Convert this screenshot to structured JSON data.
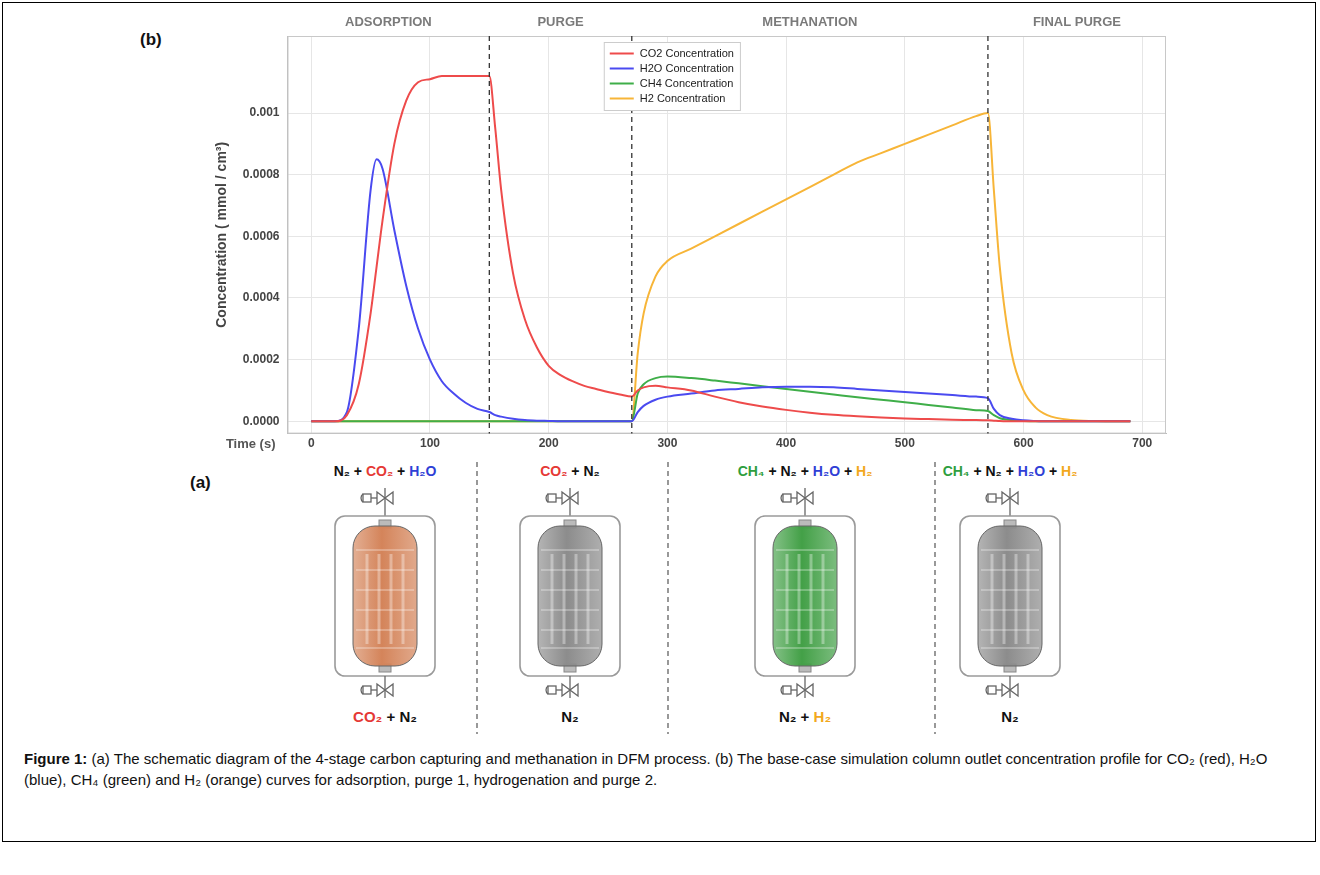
{
  "chart_data": {
    "type": "line",
    "panel_label": "(b)",
    "x_label": "Time (s)",
    "y_label": "Concentration ( mmol / cm³)",
    "phases": [
      "ADSORPTION",
      "PURGE",
      "METHANATION",
      "FINAL PURGE"
    ],
    "phase_boundaries": [
      150,
      270,
      570
    ],
    "xlim": [
      -20,
      720
    ],
    "xticks": [
      0,
      100,
      200,
      300,
      400,
      500,
      600,
      700
    ],
    "ylim": [
      -4e-05,
      0.00125
    ],
    "yticks": [
      {
        "value": 0,
        "label": "0.0000"
      },
      {
        "value": 0.0002,
        "label": "0.0002"
      },
      {
        "value": 0.0004,
        "label": "0.0004"
      },
      {
        "value": 0.0006,
        "label": "0.0006"
      },
      {
        "value": 0.0008,
        "label": "0.0008"
      },
      {
        "value": 0.001,
        "label": "0.001"
      }
    ],
    "grid": true,
    "legend": "top",
    "x": [
      0,
      10,
      20,
      30,
      40,
      50,
      55,
      60,
      70,
      80,
      90,
      100,
      110,
      120,
      130,
      140,
      150,
      155,
      160,
      170,
      180,
      190,
      200,
      210,
      220,
      230,
      240,
      250,
      260,
      270,
      275,
      280,
      290,
      300,
      320,
      340,
      360,
      380,
      400,
      420,
      440,
      460,
      480,
      500,
      520,
      540,
      560,
      570,
      575,
      580,
      590,
      600,
      610,
      620,
      640,
      660,
      690
    ],
    "series": [
      {
        "name": "CO2 Concentration",
        "color": "#ee4b4b",
        "values": [
          0,
          0,
          0,
          2e-05,
          0.00012,
          0.00035,
          0.0005,
          0.00065,
          0.0009,
          0.00104,
          0.0011,
          0.00111,
          0.00112,
          0.00112,
          0.00112,
          0.00112,
          0.00112,
          0.00095,
          0.00075,
          0.00048,
          0.00033,
          0.00024,
          0.00018,
          0.00015,
          0.00013,
          0.000115,
          0.000105,
          9.5e-05,
          8.7e-05,
          8e-05,
          0.0001,
          0.00011,
          0.000115,
          0.00011,
          0.0001,
          8e-05,
          6.2e-05,
          4.8e-05,
          3.7e-05,
          2.8e-05,
          2.1e-05,
          1.6e-05,
          1.2e-05,
          9e-06,
          7e-06,
          5e-06,
          4e-06,
          3e-06,
          2e-06,
          1e-06,
          0,
          0,
          0,
          0,
          0,
          0,
          0
        ]
      },
      {
        "name": "H2O Concentration",
        "color": "#4a4af0",
        "values": [
          0,
          0,
          0,
          3e-05,
          0.0003,
          0.00075,
          0.00085,
          0.00082,
          0.00062,
          0.00044,
          0.0003,
          0.0002,
          0.00013,
          9e-05,
          6e-05,
          4e-05,
          3e-05,
          2e-05,
          1.5e-05,
          8e-06,
          4e-06,
          2e-06,
          1e-06,
          0,
          0,
          0,
          0,
          0,
          0,
          0,
          3e-05,
          5e-05,
          7e-05,
          8e-05,
          9e-05,
          0.0001,
          0.000105,
          0.00011,
          0.000112,
          0.000112,
          0.00011,
          0.000105,
          0.0001,
          9.5e-05,
          9e-05,
          8.5e-05,
          8e-05,
          7.5e-05,
          4e-05,
          2e-05,
          8e-06,
          3e-06,
          1e-06,
          0,
          0,
          0,
          0
        ]
      },
      {
        "name": "CH4 Concentration",
        "color": "#3fae49",
        "values": [
          0,
          0,
          0,
          0,
          0,
          0,
          0,
          0,
          0,
          0,
          0,
          0,
          0,
          0,
          0,
          0,
          0,
          0,
          0,
          0,
          0,
          0,
          0,
          0,
          0,
          0,
          0,
          0,
          0,
          0,
          9e-05,
          0.00012,
          0.00014,
          0.000145,
          0.00014,
          0.000132,
          0.000123,
          0.000114,
          0.000105,
          9.6e-05,
          8.7e-05,
          7.8e-05,
          7e-05,
          6.2e-05,
          5.3e-05,
          4.5e-05,
          3.6e-05,
          3.3e-05,
          2e-05,
          1e-05,
          4e-06,
          1e-06,
          0,
          0,
          0,
          0,
          0
        ]
      },
      {
        "name": "H2 Concentration",
        "color": "#f7b538",
        "values": [
          0,
          0,
          0,
          0,
          0,
          0,
          0,
          0,
          0,
          0,
          0,
          0,
          0,
          0,
          0,
          0,
          0,
          0,
          0,
          0,
          0,
          0,
          0,
          0,
          0,
          0,
          0,
          0,
          0,
          0,
          0.00022,
          0.00035,
          0.00047,
          0.00052,
          0.00056,
          0.0006,
          0.00064,
          0.00068,
          0.00072,
          0.00076,
          0.0008,
          0.00084,
          0.00087,
          0.0009,
          0.00093,
          0.00096,
          0.00099,
          0.001,
          0.00075,
          0.0005,
          0.00022,
          0.0001,
          4.5e-05,
          2e-05,
          4e-06,
          1e-06,
          0
        ]
      }
    ]
  },
  "diagram": {
    "panel_label": "(a)",
    "separator": " + ",
    "stages": [
      {
        "color": "#d4845a",
        "top": [
          {
            "text": "N₂",
            "color": "#111111"
          },
          {
            "text": "CO₂",
            "color": "#e53935"
          },
          {
            "text": "H₂O",
            "color": "#2f3fd6"
          }
        ],
        "bottom": [
          {
            "text": "CO₂",
            "color": "#e53935"
          },
          {
            "text": "N₂",
            "color": "#111111"
          }
        ]
      },
      {
        "color": "#8c8c8c",
        "top": [
          {
            "text": "CO₂",
            "color": "#e53935"
          },
          {
            "text": "N₂",
            "color": "#111111"
          }
        ],
        "bottom": [
          {
            "text": "N₂",
            "color": "#111111"
          }
        ]
      },
      {
        "color": "#43a047",
        "top": [
          {
            "text": "CH₄",
            "color": "#2e9e3e"
          },
          {
            "text": "N₂",
            "color": "#111111"
          },
          {
            "text": "H₂O",
            "color": "#2f3fd6"
          },
          {
            "text": "H₂",
            "color": "#f2a81d"
          }
        ],
        "bottom": [
          {
            "text": "N₂",
            "color": "#111111"
          },
          {
            "text": "H₂",
            "color": "#f2a81d"
          }
        ]
      },
      {
        "color": "#8c8c8c",
        "top": [
          {
            "text": "CH₄",
            "color": "#2e9e3e"
          },
          {
            "text": "N₂",
            "color": "#111111"
          },
          {
            "text": "H₂O",
            "color": "#2f3fd6"
          },
          {
            "text": "H₂",
            "color": "#f2a81d"
          }
        ],
        "bottom": [
          {
            "text": "N₂",
            "color": "#111111"
          }
        ]
      }
    ]
  },
  "caption": {
    "label": "Figure 1:",
    "text": "(a) The schematic diagram of the 4-stage carbon capturing and methanation in DFM process. (b) The base-case simulation column outlet concentration profile for CO₂ (red), H₂O (blue), CH₄ (green) and H₂ (orange) curves for adsorption, purge 1, hydrogenation and purge 2."
  }
}
